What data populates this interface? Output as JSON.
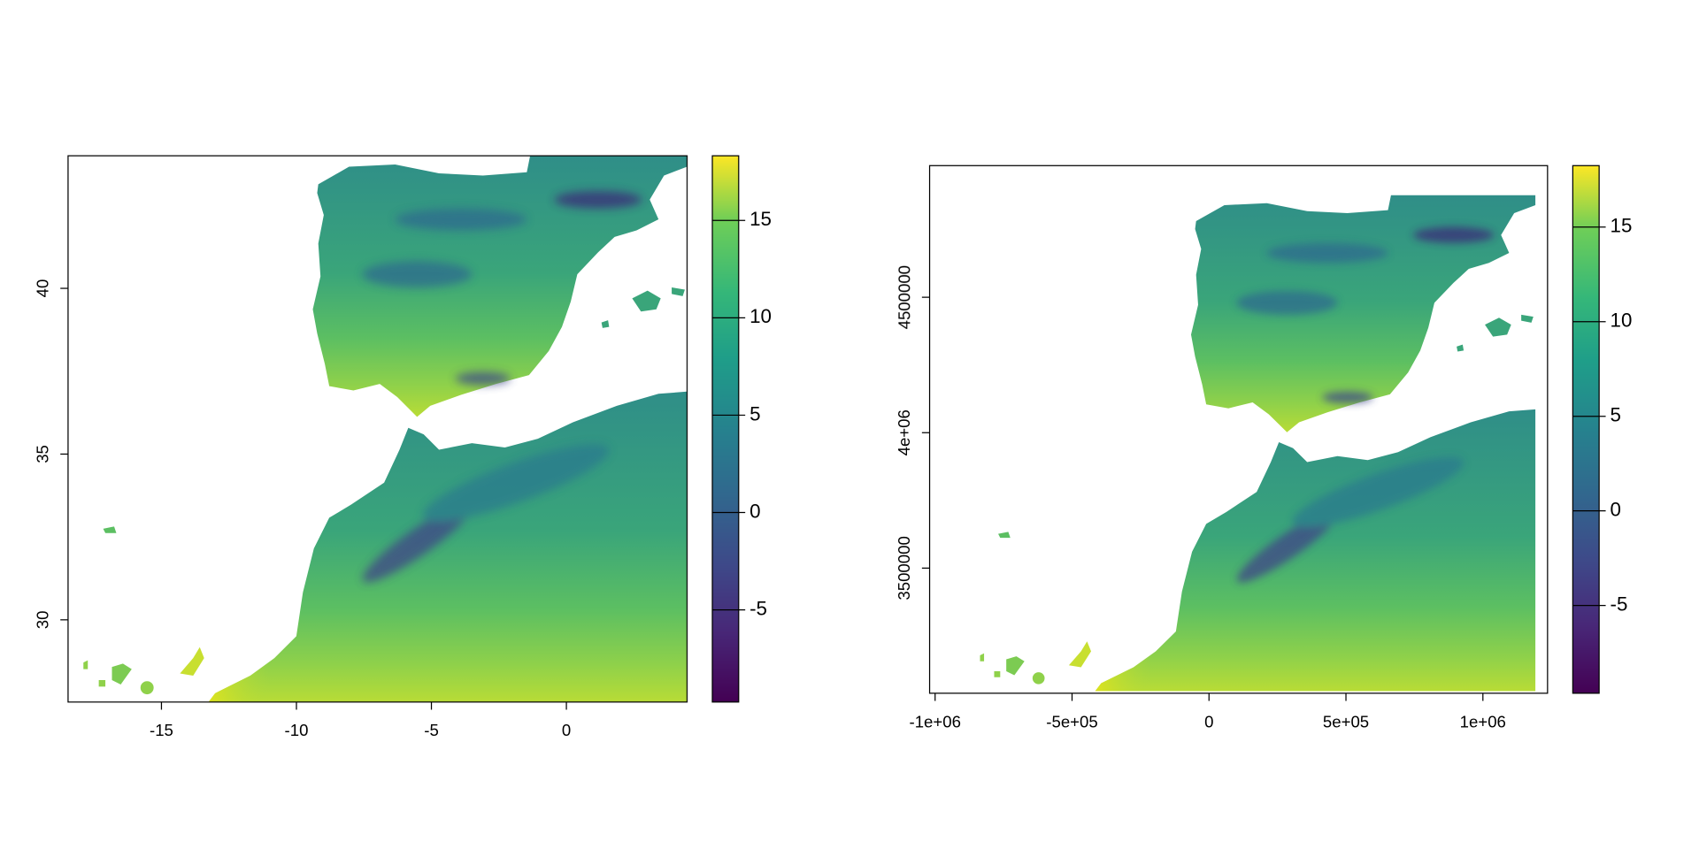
{
  "maps": [
    {
      "xlim": [
        -18.46,
        4.47
      ],
      "ylim": [
        27.52,
        44.0
      ],
      "xticks": [
        -15,
        -10,
        -5,
        0
      ],
      "yticks": [
        30,
        35,
        40
      ],
      "legend": {
        "lim": [
          -9.73,
          18.32
        ],
        "ticks": [
          -5,
          0,
          5,
          10,
          15
        ]
      }
    },
    {
      "xlim": [
        -1020000,
        1236000
      ],
      "ylim": [
        3038000,
        4986000
      ],
      "xticks": [
        {
          "value": -1000000,
          "label": "-1e+06"
        },
        {
          "value": -500000,
          "label": "-5e+05"
        },
        0,
        {
          "value": 500000,
          "label": "5e+05"
        },
        {
          "value": 1000000,
          "label": "1e+06"
        }
      ],
      "yticks": [
        3500000,
        {
          "value": 4000000,
          "label": "4e+06"
        },
        4500000
      ],
      "legend": {
        "lim": [
          -9.64,
          18.25
        ],
        "ticks": [
          -5,
          0,
          5,
          10,
          15
        ]
      }
    }
  ]
}
